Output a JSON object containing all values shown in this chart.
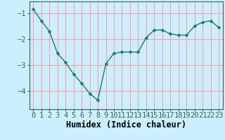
{
  "x": [
    0,
    1,
    2,
    3,
    4,
    5,
    6,
    7,
    8,
    9,
    10,
    11,
    12,
    13,
    14,
    15,
    16,
    17,
    18,
    19,
    20,
    21,
    22,
    23
  ],
  "y": [
    -0.85,
    -1.3,
    -1.7,
    -2.55,
    -2.9,
    -3.35,
    -3.7,
    -4.1,
    -4.35,
    -2.95,
    -2.55,
    -2.5,
    -2.5,
    -2.5,
    -1.95,
    -1.65,
    -1.65,
    -1.8,
    -1.85,
    -1.85,
    -1.5,
    -1.35,
    -1.3,
    -1.55
  ],
  "line_color": "#1a7a6e",
  "marker": "D",
  "marker_size": 2.5,
  "bg_color": "#cceeff",
  "grid_color": "#ff9999",
  "axis_color": "#336655",
  "xlabel": "Humidex (Indice chaleur)",
  "ylabel": "",
  "xlim": [
    -0.5,
    23.5
  ],
  "ylim": [
    -4.7,
    -0.55
  ],
  "yticks": [
    -4,
    -3,
    -2,
    -1
  ],
  "xtick_labels": [
    "0",
    "1",
    "2",
    "3",
    "4",
    "5",
    "6",
    "7",
    "8",
    "9",
    "10",
    "11",
    "12",
    "13",
    "14",
    "15",
    "16",
    "17",
    "18",
    "19",
    "20",
    "21",
    "22",
    "23"
  ],
  "xlabel_fontsize": 8.5,
  "tick_fontsize": 7.5
}
